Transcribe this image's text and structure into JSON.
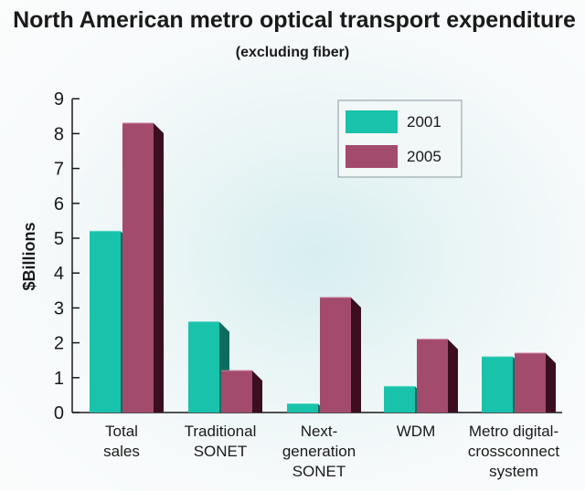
{
  "colors": {
    "s2001_front": "#19c2ab",
    "s2001_side": "#0d6b5f",
    "s2001_top": "#5fd9c7",
    "s2005_front": "#a34b6c",
    "s2005_side": "#3b0f1f",
    "s2005_top": "#c7789a",
    "axis": "#1a1a1a",
    "legend_border": "#8a9aa0"
  },
  "chart_data": {
    "type": "bar",
    "title": "North American metro optical transport expenditure",
    "subtitle": "(excluding fiber)",
    "xlabel": "",
    "ylabel": "$Billions",
    "ylim": [
      0,
      9
    ],
    "yticks": [
      0,
      1,
      2,
      3,
      4,
      5,
      6,
      7,
      8,
      9
    ],
    "grid": false,
    "legend_position": "top-right",
    "categories": [
      [
        "Total",
        "sales"
      ],
      [
        "Traditional",
        "SONET"
      ],
      [
        "Next-",
        "generation",
        "SONET"
      ],
      [
        "WDM"
      ],
      [
        "Metro digital-",
        "crossconnect",
        "system"
      ]
    ],
    "series": [
      {
        "name": "2001",
        "values": [
          5.2,
          2.6,
          0.25,
          0.75,
          1.6
        ]
      },
      {
        "name": "2005",
        "values": [
          8.3,
          1.2,
          3.3,
          2.1,
          1.7
        ]
      }
    ]
  }
}
